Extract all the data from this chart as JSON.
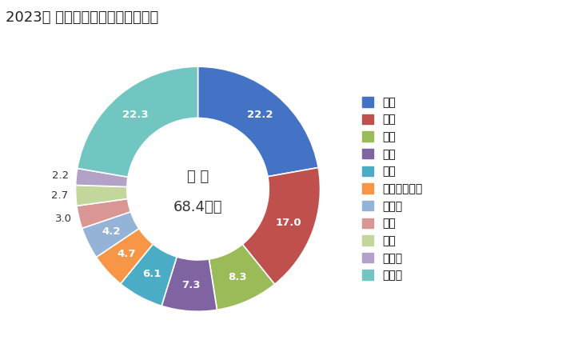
{
  "title": "2023年 輸出相手国のシェア（％）",
  "center_text_line1": "総 額",
  "center_text_line2": "68.4億円",
  "labels": [
    "米国",
    "香港",
    "台湾",
    "中国",
    "韓国",
    "シンガポール",
    "ドイツ",
    "豪州",
    "タイ",
    "カナダ",
    "その他"
  ],
  "values": [
    22.2,
    17.0,
    8.3,
    7.3,
    6.1,
    4.7,
    4.2,
    3.0,
    2.7,
    2.2,
    22.3
  ],
  "colors": [
    "#4472C4",
    "#C0504D",
    "#9BBB59",
    "#8064A2",
    "#4BACC6",
    "#F79646",
    "#95B3D7",
    "#D99694",
    "#C3D69B",
    "#B2A2C7",
    "#71C6C1"
  ],
  "background_color": "#FFFFFF",
  "title_fontsize": 13,
  "label_fontsize": 9.5,
  "legend_fontsize": 10,
  "inner_label_threshold": 3.5,
  "donut_width": 0.42
}
